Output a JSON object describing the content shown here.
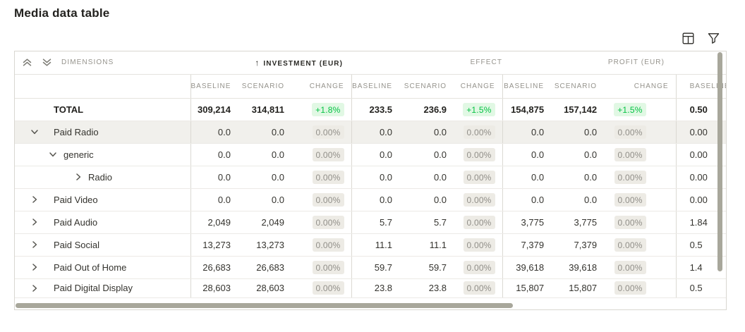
{
  "title": "Media data table",
  "toolbar": {
    "icons": [
      {
        "name": "columns-icon"
      },
      {
        "name": "filter-icon"
      }
    ]
  },
  "icons": {
    "sort_ascending": "↑",
    "collapse_all": "double-chevron-up",
    "expand_all": "double-chevron-down"
  },
  "colors": {
    "positive_text": "#04c243",
    "positive_bg": "#e1f8e4",
    "neutral_badge_text": "#908e88",
    "neutral_badge_bg": "#edebe5",
    "highlight_row_bg": "#f1f0ec",
    "header_text": "#95938c",
    "body_text": "#34332e",
    "scrollbar_thumb": "#a8a79b"
  },
  "table": {
    "dimensions_label": "DIMENSIONS",
    "groups": [
      {
        "label": "INVESTMENT (EUR)",
        "sorted": "asc"
      },
      {
        "label": "EFFECT",
        "sorted": ""
      },
      {
        "label": "PROFIT (EUR)",
        "sorted": ""
      }
    ],
    "sub_headers": [
      "BASELINE",
      "SCENARIO",
      "CHANGE"
    ],
    "overflow_header": "BASELINE",
    "rows": [
      {
        "label": "TOTAL",
        "level": 0,
        "chevron": "none",
        "total": true,
        "highlight": false,
        "cells": [
          "309,214",
          "314,811",
          "+1.8%",
          "233.5",
          "236.9",
          "+1.5%",
          "154,875",
          "157,142",
          "+1.5%",
          "0.50"
        ]
      },
      {
        "label": "Paid Radio",
        "level": 1,
        "chevron": "down",
        "total": false,
        "highlight": true,
        "cells": [
          "0.0",
          "0.0",
          "0.00%",
          "0.0",
          "0.0",
          "0.00%",
          "0.0",
          "0.0",
          "0.00%",
          "0.00"
        ]
      },
      {
        "label": "generic",
        "level": 2,
        "chevron": "down",
        "total": false,
        "highlight": false,
        "cells": [
          "0.0",
          "0.0",
          "0.00%",
          "0.0",
          "0.0",
          "0.00%",
          "0.0",
          "0.0",
          "0.00%",
          "0.00"
        ]
      },
      {
        "label": "Radio",
        "level": 3,
        "chevron": "right",
        "total": false,
        "highlight": false,
        "cells": [
          "0.0",
          "0.0",
          "0.00%",
          "0.0",
          "0.0",
          "0.00%",
          "0.0",
          "0.0",
          "0.00%",
          "0.00"
        ]
      },
      {
        "label": "Paid Video",
        "level": 1,
        "chevron": "right",
        "total": false,
        "highlight": false,
        "cells": [
          "0.0",
          "0.0",
          "0.00%",
          "0.0",
          "0.0",
          "0.00%",
          "0.0",
          "0.0",
          "0.00%",
          "0.00"
        ]
      },
      {
        "label": "Paid Audio",
        "level": 1,
        "chevron": "right",
        "total": false,
        "highlight": false,
        "cells": [
          "2,049",
          "2,049",
          "0.00%",
          "5.7",
          "5.7",
          "0.00%",
          "3,775",
          "3,775",
          "0.00%",
          "1.84"
        ]
      },
      {
        "label": "Paid Social",
        "level": 1,
        "chevron": "right",
        "total": false,
        "highlight": false,
        "cells": [
          "13,273",
          "13,273",
          "0.00%",
          "11.1",
          "11.1",
          "0.00%",
          "7,379",
          "7,379",
          "0.00%",
          "0.5"
        ]
      },
      {
        "label": "Paid Out of Home",
        "level": 1,
        "chevron": "right",
        "total": false,
        "highlight": false,
        "cells": [
          "26,683",
          "26,683",
          "0.00%",
          "59.7",
          "59.7",
          "0.00%",
          "39,618",
          "39,618",
          "0.00%",
          "1.4"
        ]
      },
      {
        "label": "Paid Digital Display",
        "level": 1,
        "chevron": "right",
        "total": false,
        "highlight": false,
        "cells": [
          "28,603",
          "28,603",
          "0.00%",
          "23.8",
          "23.8",
          "0.00%",
          "15,807",
          "15,807",
          "0.00%",
          "0.5"
        ]
      }
    ]
  }
}
